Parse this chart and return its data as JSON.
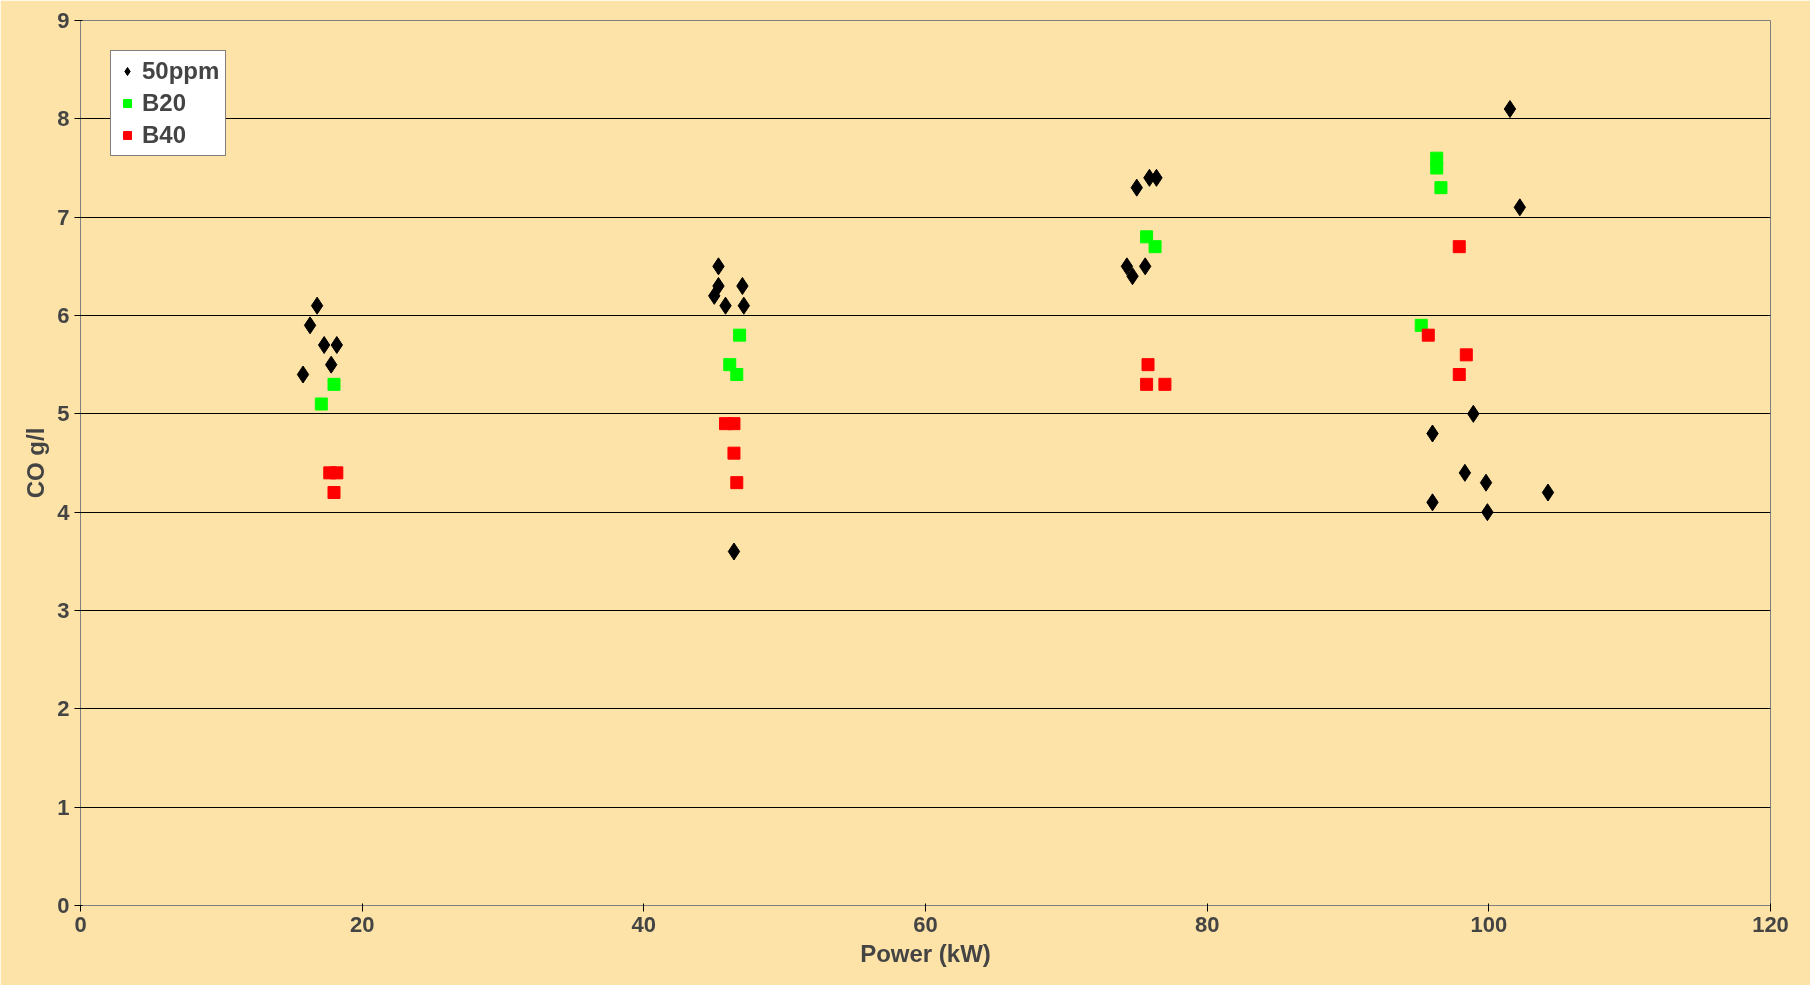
{
  "chart_data": {
    "type": "scatter",
    "xlabel": "Power (kW)",
    "ylabel": "CO g/l",
    "xlim": [
      0,
      120
    ],
    "ylim": [
      0,
      9
    ],
    "xticks": [
      0,
      20,
      40,
      60,
      80,
      100,
      120
    ],
    "yticks": [
      0,
      1,
      2,
      3,
      4,
      5,
      6,
      7,
      8,
      9
    ],
    "grid": "y",
    "legend": "top left",
    "series": [
      {
        "name": "50ppm",
        "color": "#000000",
        "marker": "diamond",
        "x": [
          15.8,
          16.3,
          16.8,
          17.3,
          17.8,
          18.2,
          45.0,
          45.3,
          45.3,
          45.8,
          47.0,
          47.1,
          46.4,
          74.3,
          74.7,
          75.0,
          75.6,
          75.9,
          76.4,
          101.5,
          102.2,
          96.0,
          98.9,
          98.3,
          96.0,
          99.8,
          99.9,
          104.2
        ],
        "values": [
          5.4,
          5.9,
          6.1,
          5.7,
          5.5,
          5.7,
          6.2,
          6.3,
          6.5,
          6.1,
          6.3,
          6.1,
          3.6,
          6.5,
          6.4,
          7.3,
          6.5,
          7.4,
          7.4,
          8.1,
          7.1,
          4.8,
          5.0,
          4.4,
          4.1,
          4.3,
          4.0,
          4.2
        ]
      },
      {
        "name": "B20",
        "color": "#00ff00",
        "marker": "square",
        "x": [
          17.1,
          18.0,
          46.1,
          46.6,
          46.8,
          75.7,
          76.3,
          95.2,
          96.3,
          96.3,
          96.6
        ],
        "values": [
          5.1,
          5.3,
          5.5,
          5.4,
          5.8,
          6.8,
          6.7,
          5.9,
          7.6,
          7.5,
          7.3
        ]
      },
      {
        "name": "B40",
        "color": "#ff0000",
        "marker": "square",
        "x": [
          17.7,
          18.2,
          18.0,
          45.8,
          46.4,
          46.4,
          46.6,
          75.8,
          75.7,
          77.0,
          97.9,
          95.7,
          98.4,
          97.9
        ],
        "values": [
          4.4,
          4.4,
          4.2,
          4.9,
          4.9,
          4.6,
          4.3,
          5.5,
          5.3,
          5.3,
          6.7,
          5.8,
          5.6,
          5.4
        ]
      }
    ]
  }
}
